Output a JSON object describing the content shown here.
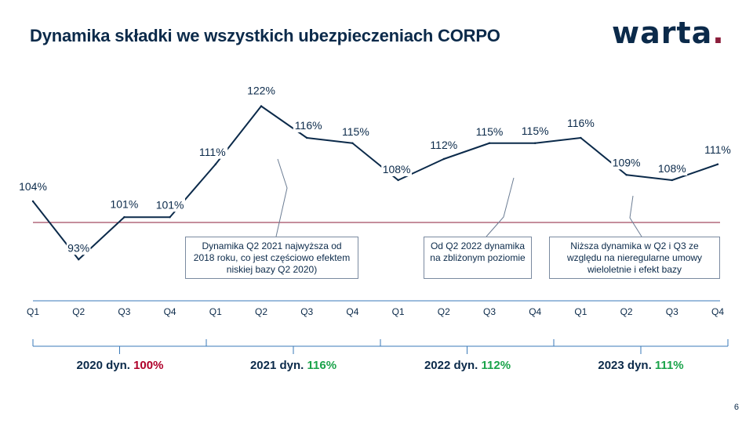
{
  "title": "Dynamika składki we wszystkich ubezpieczeniach CORPO",
  "logo": {
    "text": "warta",
    "dot": "."
  },
  "page_number": "6",
  "colors": {
    "line": "#0b2a4a",
    "baseline": "#8b1d3a",
    "axis": "#3a7ab8",
    "red": "#b0002a",
    "green": "#1aa34a"
  },
  "chart_data": {
    "type": "line",
    "title": "",
    "categories": [
      "Q1",
      "Q2",
      "Q3",
      "Q4",
      "Q1",
      "Q2",
      "Q3",
      "Q4",
      "Q1",
      "Q2",
      "Q3",
      "Q4",
      "Q1",
      "Q2",
      "Q3",
      "Q4"
    ],
    "values": [
      104,
      93,
      101,
      101,
      111,
      122,
      116,
      115,
      108,
      112,
      115,
      115,
      116,
      109,
      108,
      111
    ],
    "labels": [
      "104%",
      "93%",
      "101%",
      "101%",
      "111%",
      "122%",
      "116%",
      "115%",
      "108%",
      "112%",
      "115%",
      "115%",
      "116%",
      "109%",
      "108%",
      "111%"
    ],
    "baseline": 100,
    "ylim": [
      88,
      126
    ],
    "grid": false
  },
  "annotations": [
    {
      "text": "Dynamika Q2 2021 najwyższa od 2018 roku, co jest częściowo efektem niskiej bazy Q2 2020)"
    },
    {
      "text": "Od Q2 2022 dynamika na zbliżonym poziomie"
    },
    {
      "text": "Niższa dynamika w Q2 i Q3 ze względu na nieregularne umowy wieloletnie i efekt bazy"
    }
  ],
  "years": [
    {
      "label": "2020 dyn.",
      "value": "100%",
      "color": "#b0002a"
    },
    {
      "label": "2021 dyn.",
      "value": "116%",
      "color": "#1aa34a"
    },
    {
      "label": "2022 dyn.",
      "value": "112%",
      "color": "#1aa34a"
    },
    {
      "label": "2023 dyn.",
      "value": "111%",
      "color": "#1aa34a"
    }
  ]
}
